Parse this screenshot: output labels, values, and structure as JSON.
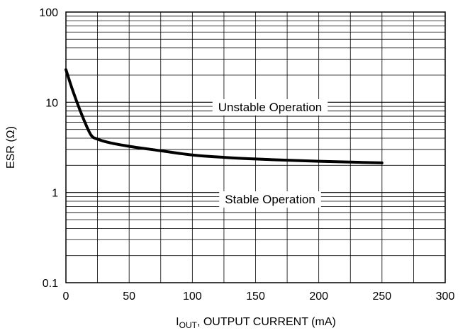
{
  "chart_data": {
    "type": "line",
    "title": "",
    "xlabel_main": "I",
    "xlabel_sub": "OUT",
    "xlabel_rest": ", OUTPUT CURRENT (mA)",
    "ylabel": "ESR (Ω)",
    "xlim": [
      0,
      300
    ],
    "ylim": [
      0.1,
      100
    ],
    "yscale": "log",
    "grid": true,
    "x_ticks": [
      0,
      50,
      100,
      150,
      200,
      250,
      300
    ],
    "x_tick_labels": [
      "0",
      "50",
      "100",
      "150",
      "200",
      "250",
      "300"
    ],
    "y_ticks": [
      0.1,
      1,
      10,
      100
    ],
    "y_tick_labels": [
      "0.1",
      "1",
      "10",
      "100"
    ],
    "series": [
      {
        "x": [
          0,
          5,
          10,
          15,
          20,
          25,
          35,
          50,
          75,
          100,
          125,
          150,
          175,
          200,
          225,
          250
        ],
        "y": [
          23,
          14,
          9,
          6,
          4.3,
          3.9,
          3.55,
          3.25,
          2.9,
          2.6,
          2.45,
          2.35,
          2.28,
          2.22,
          2.17,
          2.13
        ]
      }
    ],
    "annotations": [
      {
        "text": "Unstable Operation",
        "region": "above curve"
      },
      {
        "text": "Stable Operation",
        "region": "below curve"
      }
    ]
  }
}
